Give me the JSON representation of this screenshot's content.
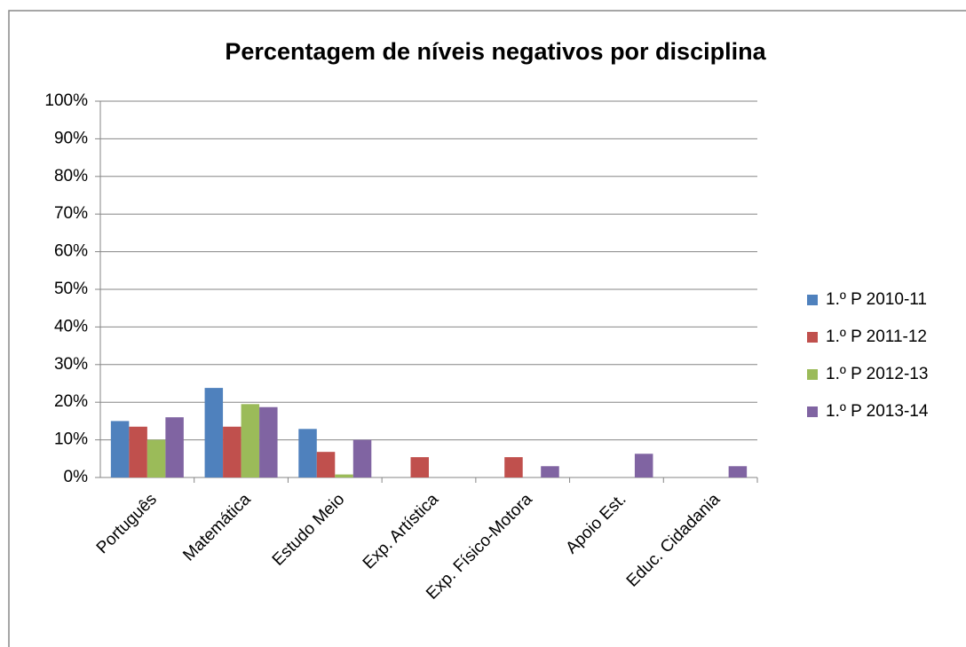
{
  "chart_data": {
    "type": "bar",
    "title": "Percentagem de níveis negativos por disciplina",
    "categories": [
      "Português",
      "Matemática",
      "Estudo Meio",
      "Exp. Artística",
      "Exp. Físico-Motora",
      "Apoio Est.",
      "Educ. Cidadania"
    ],
    "series": [
      {
        "name": "1.º P 2010-11",
        "color": "#4f81bd",
        "values": [
          15,
          23.8,
          12.9,
          0,
          0,
          0,
          0
        ]
      },
      {
        "name": "1.º P 2011-12",
        "color": "#c0504d",
        "values": [
          13.5,
          13.5,
          6.8,
          5.4,
          5.4,
          0,
          0
        ]
      },
      {
        "name": "1.º P 2012-13",
        "color": "#9bbb59",
        "values": [
          10,
          19.5,
          0.8,
          0,
          0,
          0,
          0
        ]
      },
      {
        "name": "1.º P 2013-14",
        "color": "#8064a2",
        "values": [
          16,
          18.7,
          10,
          0,
          3,
          6.3,
          3
        ]
      }
    ],
    "ylim": [
      0,
      100
    ],
    "yticks": [
      {
        "value": 0,
        "label": "0%"
      },
      {
        "value": 10,
        "label": "10%"
      },
      {
        "value": 20,
        "label": "20%"
      },
      {
        "value": 30,
        "label": "30%"
      },
      {
        "value": 40,
        "label": "40%"
      },
      {
        "value": 50,
        "label": "50%"
      },
      {
        "value": 60,
        "label": "60%"
      },
      {
        "value": 70,
        "label": "70%"
      },
      {
        "value": 80,
        "label": "80%"
      },
      {
        "value": 90,
        "label": "90%"
      },
      {
        "value": 100,
        "label": "100%"
      }
    ],
    "grid": true,
    "legend": "right"
  }
}
